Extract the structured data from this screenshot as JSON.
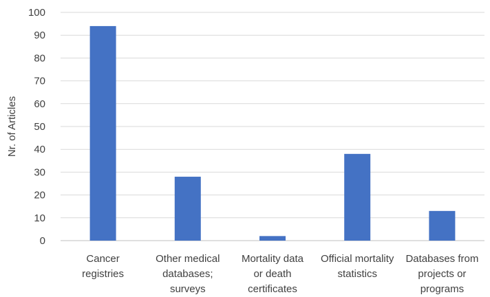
{
  "chart_data": {
    "type": "bar",
    "categories": [
      [
        "Cancer",
        "registries"
      ],
      [
        "Other medical",
        "databases;",
        "surveys"
      ],
      [
        "Mortality data",
        "or death",
        "certificates"
      ],
      [
        "Official mortality",
        "statistics"
      ],
      [
        "Databases from",
        "projects or",
        "programs"
      ]
    ],
    "values": [
      94,
      28,
      2,
      38,
      13
    ],
    "title": "",
    "xlabel": "",
    "ylabel": "Nr. of Articles",
    "ylim": [
      0,
      100
    ],
    "yticks": [
      0,
      10,
      20,
      30,
      40,
      50,
      60,
      70,
      80,
      90,
      100
    ],
    "grid": true,
    "legend": "none",
    "bar_color": "#4472c4"
  }
}
